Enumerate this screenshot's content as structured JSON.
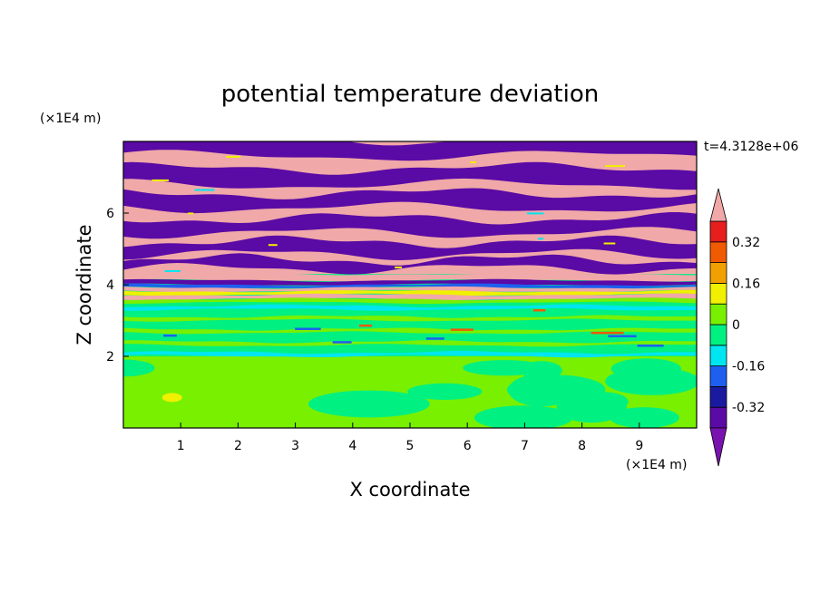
{
  "chart_data": {
    "type": "heatmap",
    "title": "potential temperature deviation",
    "xlabel": "X coordinate",
    "ylabel": "Z coordinate",
    "x_unit": "(×1E4 m)",
    "y_unit": "(×1E4 m)",
    "time_label": "t=4.3128e+06",
    "xlim": [
      0,
      10
    ],
    "ylim": [
      0,
      8
    ],
    "x_ticks": [
      "1",
      "2",
      "3",
      "4",
      "5",
      "6",
      "7",
      "8",
      "9"
    ],
    "x_tick_values": [
      1,
      2,
      3,
      4,
      5,
      6,
      7,
      8,
      9
    ],
    "y_ticks": [
      "2",
      "4",
      "6"
    ],
    "y_tick_values": [
      2,
      4,
      6
    ],
    "grid": false,
    "colorbar": {
      "placement": "right",
      "labels": [
        "0.32",
        "0.16",
        "0",
        "-0.16",
        "-0.32"
      ],
      "label_values": [
        0.32,
        0.16,
        0,
        -0.16,
        -0.32
      ],
      "levels": [
        -0.4,
        -0.32,
        -0.24,
        -0.16,
        -0.08,
        0,
        0.08,
        0.16,
        0.24,
        0.32,
        0.4
      ],
      "colors": [
        "#5a0aa5",
        "#1a1aa0",
        "#1e5ff0",
        "#00e6f0",
        "#00f082",
        "#78f000",
        "#f0f000",
        "#f0a000",
        "#f05a00",
        "#e61e1e"
      ],
      "over_color": "#f0a8a8",
      "under_color": "#7a12b0"
    },
    "bands": [
      {
        "z": [
          6.7,
          8.0
        ],
        "pattern": "alternating-stripes",
        "colors": [
          "#f0a8a8",
          "#5a0aa5"
        ]
      },
      {
        "z": [
          4.3,
          6.7
        ],
        "pattern": "alternating-stripes",
        "colors": [
          "#f0a8a8",
          "#5a0aa5"
        ]
      },
      {
        "z": [
          3.5,
          4.3
        ],
        "pattern": "alternating-stripes",
        "colors": [
          "#f0a8a8",
          "#5a0aa5"
        ]
      },
      {
        "z": [
          2.0,
          3.5
        ],
        "pattern": "mixed",
        "colors": [
          "#00f082",
          "#78f000"
        ]
      },
      {
        "z": [
          0.0,
          2.0
        ],
        "pattern": "mixed",
        "colors": [
          "#78f000",
          "#00f082"
        ]
      }
    ]
  }
}
